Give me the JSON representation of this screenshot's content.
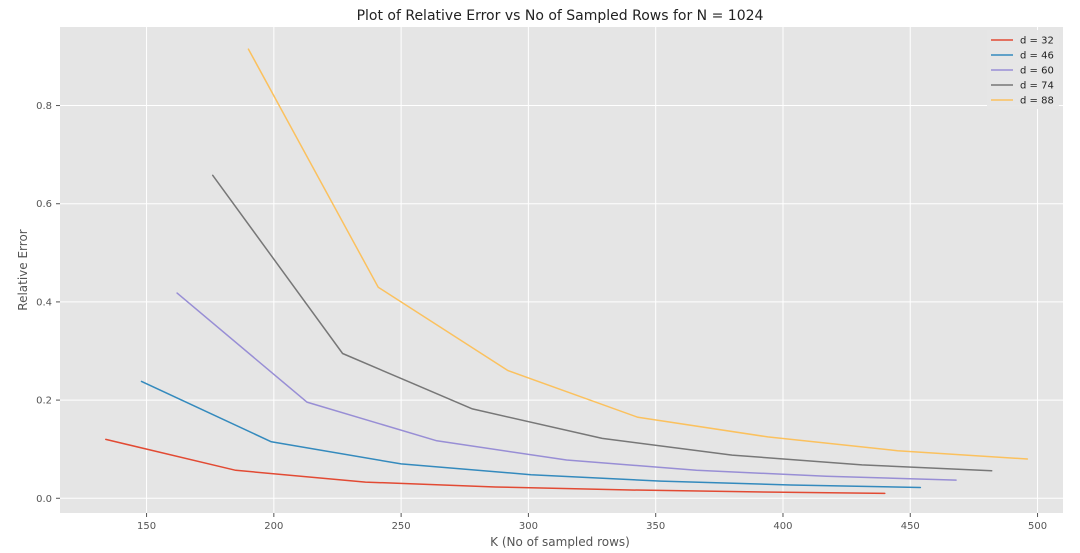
{
  "chart_data": {
    "type": "line",
    "title": "Plot of Relative Error vs No of Sampled Rows for N = 1024",
    "xlabel": "K (No of sampled rows)",
    "ylabel": "Relative Error",
    "xlim": [
      116,
      510
    ],
    "ylim": [
      -0.03,
      0.96
    ],
    "xticks": [
      150,
      200,
      250,
      300,
      350,
      400,
      450,
      500
    ],
    "yticks": [
      0.0,
      0.2,
      0.4,
      0.6,
      0.8
    ],
    "grid": true,
    "legend_position": "top-right",
    "series": [
      {
        "name": "d = 32",
        "color": "#E24A33",
        "x": [
          134,
          185,
          236,
          287,
          338,
          389,
          440
        ],
        "y": [
          0.12,
          0.057,
          0.033,
          0.023,
          0.017,
          0.013,
          0.01
        ]
      },
      {
        "name": "d = 46",
        "color": "#348ABD",
        "x": [
          148,
          199,
          250,
          301,
          352,
          403,
          454
        ],
        "y": [
          0.238,
          0.115,
          0.07,
          0.048,
          0.035,
          0.027,
          0.022
        ]
      },
      {
        "name": "d = 60",
        "color": "#988ED5",
        "x": [
          162,
          213,
          264,
          315,
          366,
          417,
          468
        ],
        "y": [
          0.418,
          0.196,
          0.117,
          0.078,
          0.057,
          0.045,
          0.037
        ]
      },
      {
        "name": "d = 74",
        "color": "#777777",
        "x": [
          176,
          227,
          278,
          329,
          380,
          431,
          482
        ],
        "y": [
          0.658,
          0.295,
          0.182,
          0.122,
          0.088,
          0.068,
          0.056
        ]
      },
      {
        "name": "d = 88",
        "color": "#FBC15E",
        "x": [
          190,
          241,
          292,
          343,
          394,
          445,
          496
        ],
        "y": [
          0.915,
          0.43,
          0.26,
          0.165,
          0.125,
          0.097,
          0.08
        ]
      }
    ]
  }
}
